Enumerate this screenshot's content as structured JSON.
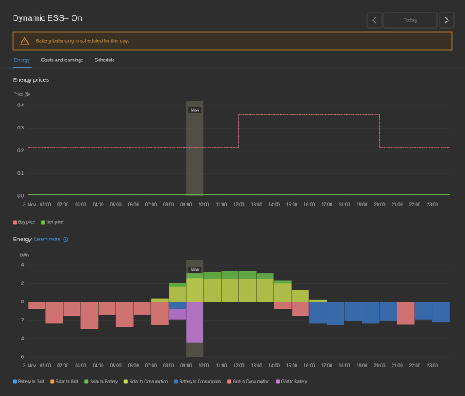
{
  "header": {
    "title": "Dynamic ESS– On",
    "date_button": "Today"
  },
  "alert": "Battery balancing is scheduled for this day.",
  "tabs": [
    "Energy",
    "Costs and earnings",
    "Schedule"
  ],
  "active_tab": "Energy",
  "chart_data": [
    {
      "type": "line",
      "title": "Energy prices",
      "y_label": "Price ($)",
      "categories": [
        "3. Nov",
        "01:00",
        "02:00",
        "03:00",
        "04:00",
        "05:00",
        "06:00",
        "07:00",
        "08:00",
        "09:00",
        "10:00",
        "11:00",
        "12:00",
        "13:00",
        "14:00",
        "15:00",
        "16:00",
        "17:00",
        "18:00",
        "19:00",
        "20:00",
        "21:00",
        "22:00",
        "23:00"
      ],
      "highlight": "09:00",
      "highlight_label": "Now",
      "ylim": [
        0,
        0.4
      ],
      "yticks": [
        {
          "value": 0,
          "label": "0.0"
        },
        0.1,
        0.2,
        0.3,
        0.4
      ],
      "series": [
        {
          "name": "Buy price",
          "color": "#e9787c",
          "values": [
            0.215,
            0.215,
            0.215,
            0.215,
            0.215,
            0.215,
            0.215,
            0.215,
            0.215,
            0.215,
            0.215,
            0.215,
            0.36,
            0.36,
            0.36,
            0.36,
            0.36,
            0.36,
            0.36,
            0.36,
            0.215,
            0.215,
            0.215,
            0.215
          ]
        },
        {
          "name": "Sell price",
          "color": "#6cc04a",
          "values": [
            0.005,
            0.005,
            0.005,
            0.005,
            0.005,
            0.005,
            0.005,
            0.005,
            0.005,
            0.005,
            0.005,
            0.005,
            0.005,
            0.005,
            0.005,
            0.005,
            0.005,
            0.005,
            0.005,
            0.005,
            0.005,
            0.005,
            0.005,
            0.005
          ]
        }
      ]
    },
    {
      "type": "bar",
      "title": "Energy",
      "link": "Learn more",
      "y_label": "kWh",
      "categories": [
        "3. Nov",
        "01:00",
        "02:00",
        "03:00",
        "04:00",
        "05:00",
        "06:00",
        "07:00",
        "08:00",
        "09:00",
        "10:00",
        "11:00",
        "12:00",
        "13:00",
        "14:00",
        "15:00",
        "16:00",
        "17:00",
        "18:00",
        "19:00",
        "20:00",
        "21:00",
        "22:00",
        "23:00"
      ],
      "highlight": "09:00",
      "highlight_label": "Now",
      "ylim": [
        -6,
        4
      ],
      "yticks": [
        {
          "value": -6,
          "label": "6"
        },
        {
          "value": -4,
          "label": "4"
        },
        {
          "value": -2,
          "label": "2"
        },
        0,
        2,
        4
      ],
      "series": [
        {
          "name": "Battery to Grid",
          "color": "#3fa2e8",
          "values": [
            0,
            0,
            0,
            0,
            0,
            0,
            0,
            0,
            0,
            0,
            0,
            0,
            0,
            0,
            0,
            0,
            0,
            0,
            0,
            0,
            0,
            0,
            0,
            0
          ]
        },
        {
          "name": "Solar to Grid",
          "color": "#f0a040",
          "values": [
            0,
            0,
            0,
            0,
            0,
            0,
            0,
            0,
            0,
            0,
            0,
            0,
            0,
            0,
            0,
            0,
            0,
            0,
            0,
            0,
            0,
            0,
            0,
            0
          ]
        },
        {
          "name": "Solar to Battery",
          "color": "#6cc04a",
          "values": [
            0,
            0,
            0,
            0,
            0,
            0,
            0,
            0,
            0.4,
            0.5,
            0.7,
            0.85,
            0.8,
            0.6,
            0.3,
            0,
            0,
            0,
            0,
            0,
            0,
            0,
            0,
            0
          ]
        },
        {
          "name": "Solar to Consumption",
          "color": "#c8dc4c",
          "values": [
            0,
            0,
            0,
            0,
            0,
            0,
            0,
            0.3,
            1.6,
            2.6,
            2.5,
            2.5,
            2.5,
            2.5,
            2.0,
            1.3,
            0.2,
            0,
            0,
            0,
            0,
            0,
            0,
            0
          ]
        },
        {
          "name": "Battery to Consumption",
          "color": "#3b78c4",
          "values": [
            0,
            0,
            0,
            0,
            0,
            0,
            0,
            0,
            -0.8,
            0,
            0,
            0,
            0,
            0,
            0,
            0,
            -2.3,
            -2.5,
            -2.0,
            -2.3,
            -2.0,
            0,
            -1.9,
            -2.2
          ]
        },
        {
          "name": "Grid to Consumption",
          "color": "#f08080",
          "values": [
            -0.8,
            -2.3,
            -1.5,
            -2.9,
            -1.4,
            -2.7,
            -1.4,
            -2.5,
            0,
            0,
            0,
            0,
            0,
            0,
            -0.8,
            -1.5,
            0,
            0,
            0,
            0,
            0,
            -2.4,
            0,
            0
          ]
        },
        {
          "name": "Grid to Battery",
          "color": "#c87ae0",
          "values": [
            0,
            0,
            0,
            0,
            0,
            0,
            0,
            0,
            -1.1,
            -4.4,
            0,
            0,
            0,
            0,
            0,
            0,
            0,
            0,
            0,
            0,
            0,
            0,
            0,
            0
          ]
        }
      ]
    }
  ]
}
